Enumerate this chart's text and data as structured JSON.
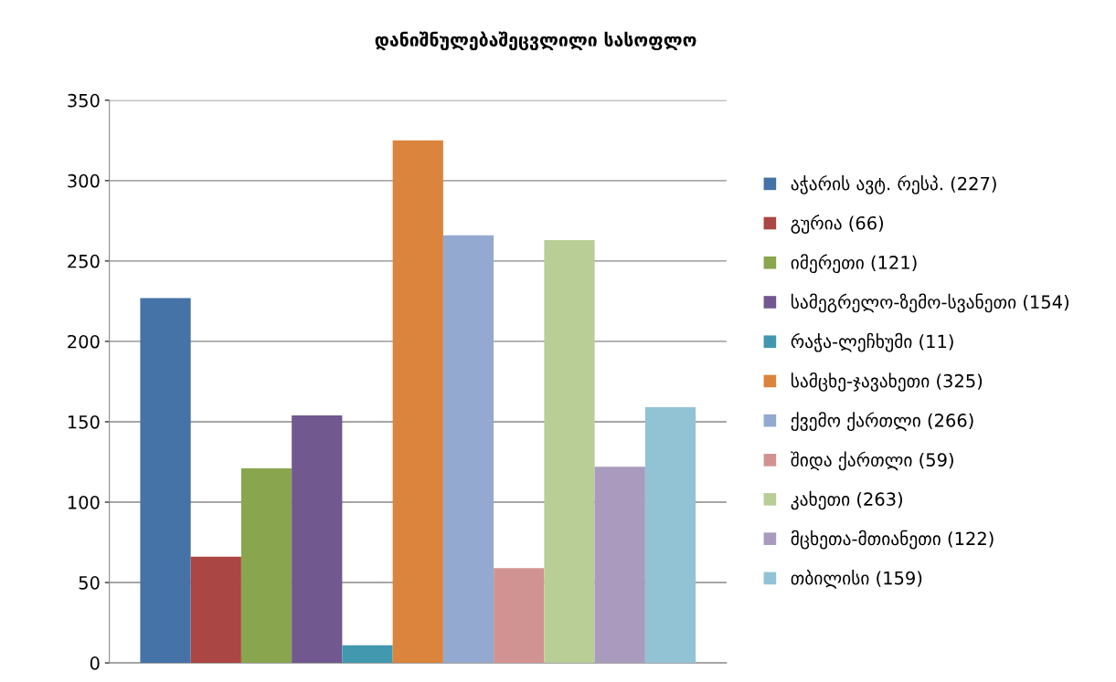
{
  "chart_data": {
    "type": "bar",
    "title": "დანიშნულებაშეცვლილი სასოფლო",
    "categories": [
      null
    ],
    "series": [
      {
        "name": "აჭარის ავტ. რესპ. (227)",
        "color": "#4572a7",
        "values": [
          227
        ]
      },
      {
        "name": "გურია (66)",
        "color": "#aa4643",
        "values": [
          66
        ]
      },
      {
        "name": "იმერეთი (121)",
        "color": "#89a54e",
        "values": [
          121
        ]
      },
      {
        "name": "სამეგრელო-ზემო-სვანეთი (154)",
        "color": "#71588f",
        "values": [
          154
        ]
      },
      {
        "name": "რაჭა-ლეჩხუმი (11)",
        "color": "#4198af",
        "values": [
          11
        ]
      },
      {
        "name": "სამცხე-ჯავახეთი (325)",
        "color": "#db843d",
        "values": [
          325
        ]
      },
      {
        "name": "ქვემო ქართლი (266)",
        "color": "#93a9cf",
        "values": [
          266
        ]
      },
      {
        "name": "შიდა ქართლი (59)",
        "color": "#d19392",
        "values": [
          59
        ]
      },
      {
        "name": "კახეთი (263)",
        "color": "#b9cd96",
        "values": [
          263
        ]
      },
      {
        "name": "მცხეთა-მთიანეთი (122)",
        "color": "#a99bbd",
        "values": [
          122
        ]
      },
      {
        "name": "თბილისი (159)",
        "color": "#92c3d5",
        "values": [
          159
        ]
      }
    ],
    "ylim": [
      0,
      350
    ],
    "yticks": [
      0,
      50,
      100,
      150,
      200,
      250,
      300,
      350
    ],
    "grid": "y",
    "legend": "right"
  }
}
